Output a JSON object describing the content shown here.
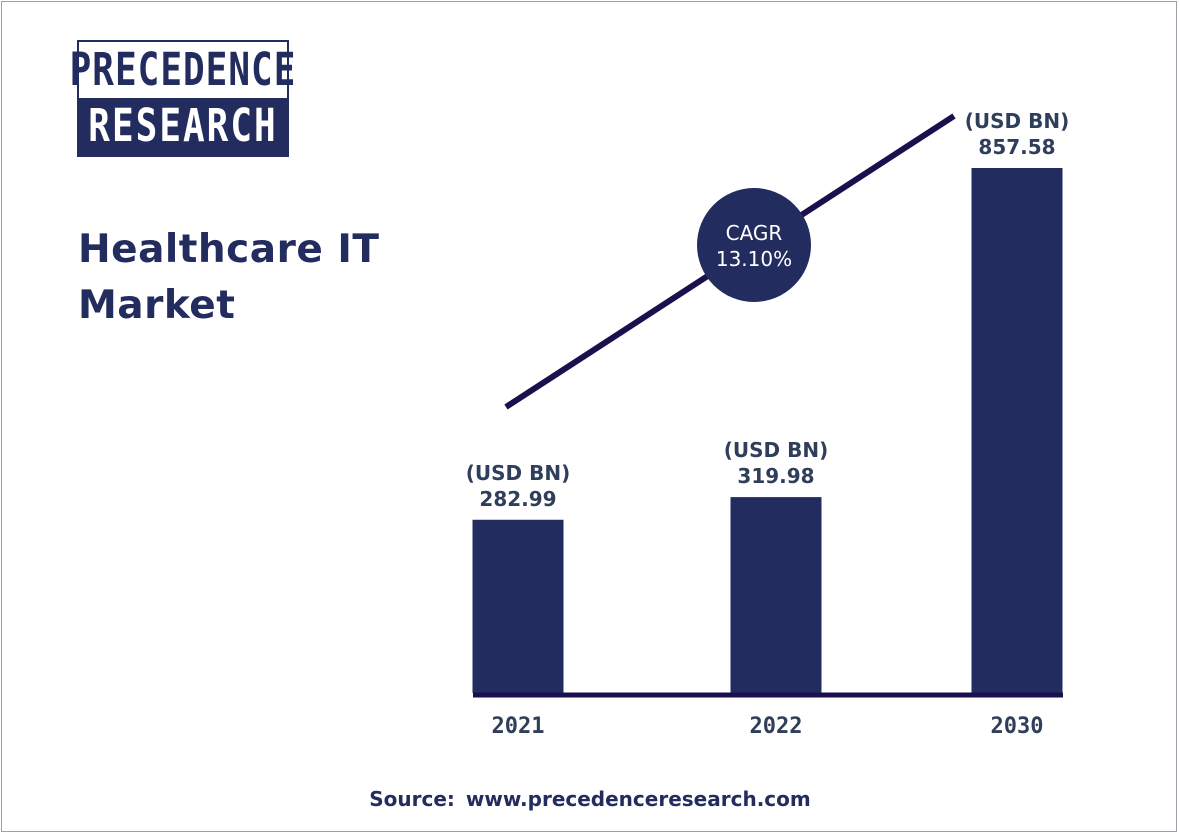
{
  "logo": {
    "line1": "PRECEDENCE",
    "line2": "RESEARCH"
  },
  "title": "Healthcare IT Market",
  "source_label": "Source:",
  "source_url": "www.precedenceresearch.com",
  "colors": {
    "primary": "#232c5e",
    "trend_line": "#1b0f4d",
    "label_text": "#2f3e5a"
  },
  "chart_data": {
    "type": "bar",
    "categories": [
      "2021",
      "2022",
      "2030"
    ],
    "values": [
      282.99,
      319.98,
      857.58
    ],
    "value_unit_label": "(USD BN)",
    "value_labels": [
      "282.99",
      "319.98",
      "857.58"
    ],
    "cagr_label": "CAGR",
    "cagr_value": "13.10%",
    "ylim": [
      0,
      857.58
    ],
    "grid": false,
    "axes_visible": false
  }
}
